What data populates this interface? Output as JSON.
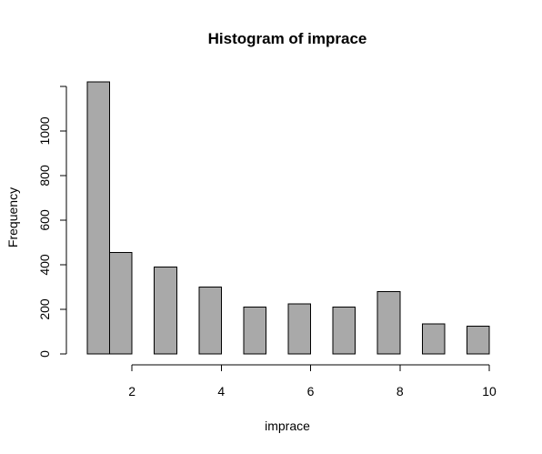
{
  "chart_data": {
    "type": "bar",
    "title": "Histogram of imprace",
    "xlabel": "imprace",
    "ylabel": "Frequency",
    "bar_color": "#a9a9a9",
    "bins": [
      {
        "x0": 1.0,
        "x1": 1.5,
        "count": 1220
      },
      {
        "x0": 1.5,
        "x1": 2.0,
        "count": 455
      },
      {
        "x0": 2.5,
        "x1": 3.0,
        "count": 390
      },
      {
        "x0": 3.5,
        "x1": 4.0,
        "count": 300
      },
      {
        "x0": 4.5,
        "x1": 5.0,
        "count": 210
      },
      {
        "x0": 5.5,
        "x1": 6.0,
        "count": 225
      },
      {
        "x0": 6.5,
        "x1": 7.0,
        "count": 210
      },
      {
        "x0": 7.5,
        "x1": 8.0,
        "count": 280
      },
      {
        "x0": 8.5,
        "x1": 9.0,
        "count": 135
      },
      {
        "x0": 9.5,
        "x1": 10.0,
        "count": 125
      }
    ],
    "xlim": [
      1,
      10
    ],
    "ylim": [
      0,
      1220
    ],
    "x_ticks": [
      2,
      4,
      6,
      8,
      10
    ],
    "y_ticks": [
      0,
      200,
      400,
      600,
      800,
      1000
    ],
    "y_axis_top": 1200,
    "grid": false,
    "legend": "none"
  }
}
